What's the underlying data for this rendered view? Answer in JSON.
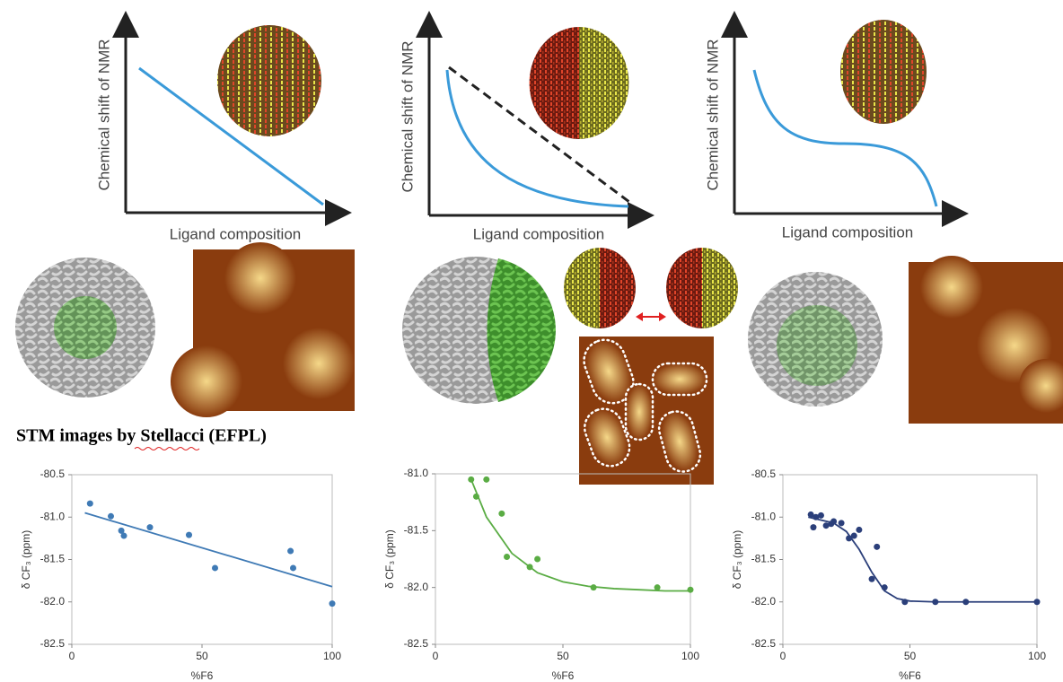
{
  "schematics": [
    {
      "ylabel": "Chemical shift of NMR",
      "xlabel": "Ligand composition"
    },
    {
      "ylabel": "Chemical shift of NMR",
      "xlabel": "Ligand composition"
    },
    {
      "ylabel": "Chemical shift of NMR",
      "xlabel": "Ligand composition"
    }
  ],
  "caption": "STM images by Stellacci (EFPL)",
  "chart_data": [
    {
      "type": "scatter",
      "color": "#3f7ab5",
      "xlabel": "%F6",
      "ylabel": "δ CF₃ (ppm)",
      "xlim": [
        0,
        100
      ],
      "xticks": [
        0,
        50,
        100
      ],
      "ylim": [
        -82.5,
        -80.5
      ],
      "yticks": [
        {
          "value": -82.5,
          "label": "-82.5"
        },
        {
          "value": -82,
          "label": "-82.0"
        },
        {
          "value": -81.5,
          "label": "-81.5"
        },
        {
          "value": -81,
          "label": "-81.0"
        },
        {
          "value": -80.5,
          "label": "-80.5"
        }
      ],
      "x": [
        7,
        15,
        19,
        20,
        30,
        45,
        55,
        84,
        85,
        100
      ],
      "values": [
        -80.84,
        -80.99,
        -81.16,
        -81.22,
        -81.12,
        -81.21,
        -81.6,
        -81.4,
        -81.6,
        -82.02
      ],
      "fit": {
        "x": [
          5,
          100
        ],
        "values": [
          -80.95,
          -81.82
        ]
      }
    },
    {
      "type": "scatter",
      "color": "#5aac44",
      "xlabel": "%F6",
      "ylabel": "δ CF₃ (ppm)",
      "xlim": [
        0,
        100
      ],
      "xticks": [
        0,
        50,
        100
      ],
      "ylim": [
        -82.5,
        -81
      ],
      "yticks": [
        {
          "value": -82.5,
          "label": "-82.5"
        },
        {
          "value": -82,
          "label": "-82.0"
        },
        {
          "value": -81.5,
          "label": "-81.5"
        },
        {
          "value": -81,
          "label": "-81.0"
        }
      ],
      "x": [
        14,
        16,
        20,
        26,
        28,
        37,
        40,
        62,
        87,
        100
      ],
      "values": [
        -81.05,
        -81.2,
        -81.05,
        -81.35,
        -81.73,
        -81.82,
        -81.75,
        -82.0,
        -82.0,
        -82.02
      ],
      "fit": {
        "x": [
          14,
          20,
          30,
          40,
          50,
          60,
          70,
          80,
          90,
          100
        ],
        "values": [
          -81.05,
          -81.38,
          -81.7,
          -81.87,
          -81.95,
          -81.99,
          -82.01,
          -82.02,
          -82.03,
          -82.03
        ]
      }
    },
    {
      "type": "scatter",
      "color": "#2b3f7a",
      "xlabel": "%F6",
      "ylabel": "δ CF₃ (ppm)",
      "xlim": [
        0,
        100
      ],
      "xticks": [
        0,
        50,
        100
      ],
      "ylim": [
        -82.5,
        -80.5
      ],
      "yticks": [
        {
          "value": -82.5,
          "label": "-82.5"
        },
        {
          "value": -82,
          "label": "-82.0"
        },
        {
          "value": -81.5,
          "label": "-81.5"
        },
        {
          "value": -81,
          "label": "-81.0"
        },
        {
          "value": -80.5,
          "label": "-80.5"
        }
      ],
      "x": [
        11,
        12,
        13,
        15,
        17,
        19,
        20,
        23,
        26,
        28,
        30,
        35,
        37,
        40,
        48,
        60,
        72,
        100
      ],
      "values": [
        -80.97,
        -81.12,
        -81.0,
        -80.98,
        -81.1,
        -81.08,
        -81.05,
        -81.07,
        -81.25,
        -81.22,
        -81.15,
        -81.73,
        -81.35,
        -81.83,
        -82.0,
        -82.0,
        -82.0,
        -82.0
      ],
      "fit": {
        "x": [
          10,
          20,
          25,
          30,
          35,
          40,
          45,
          50,
          60,
          100
        ],
        "values": [
          -81.0,
          -81.07,
          -81.17,
          -81.38,
          -81.65,
          -81.87,
          -81.96,
          -81.99,
          -82.0,
          -82.0
        ]
      }
    }
  ]
}
